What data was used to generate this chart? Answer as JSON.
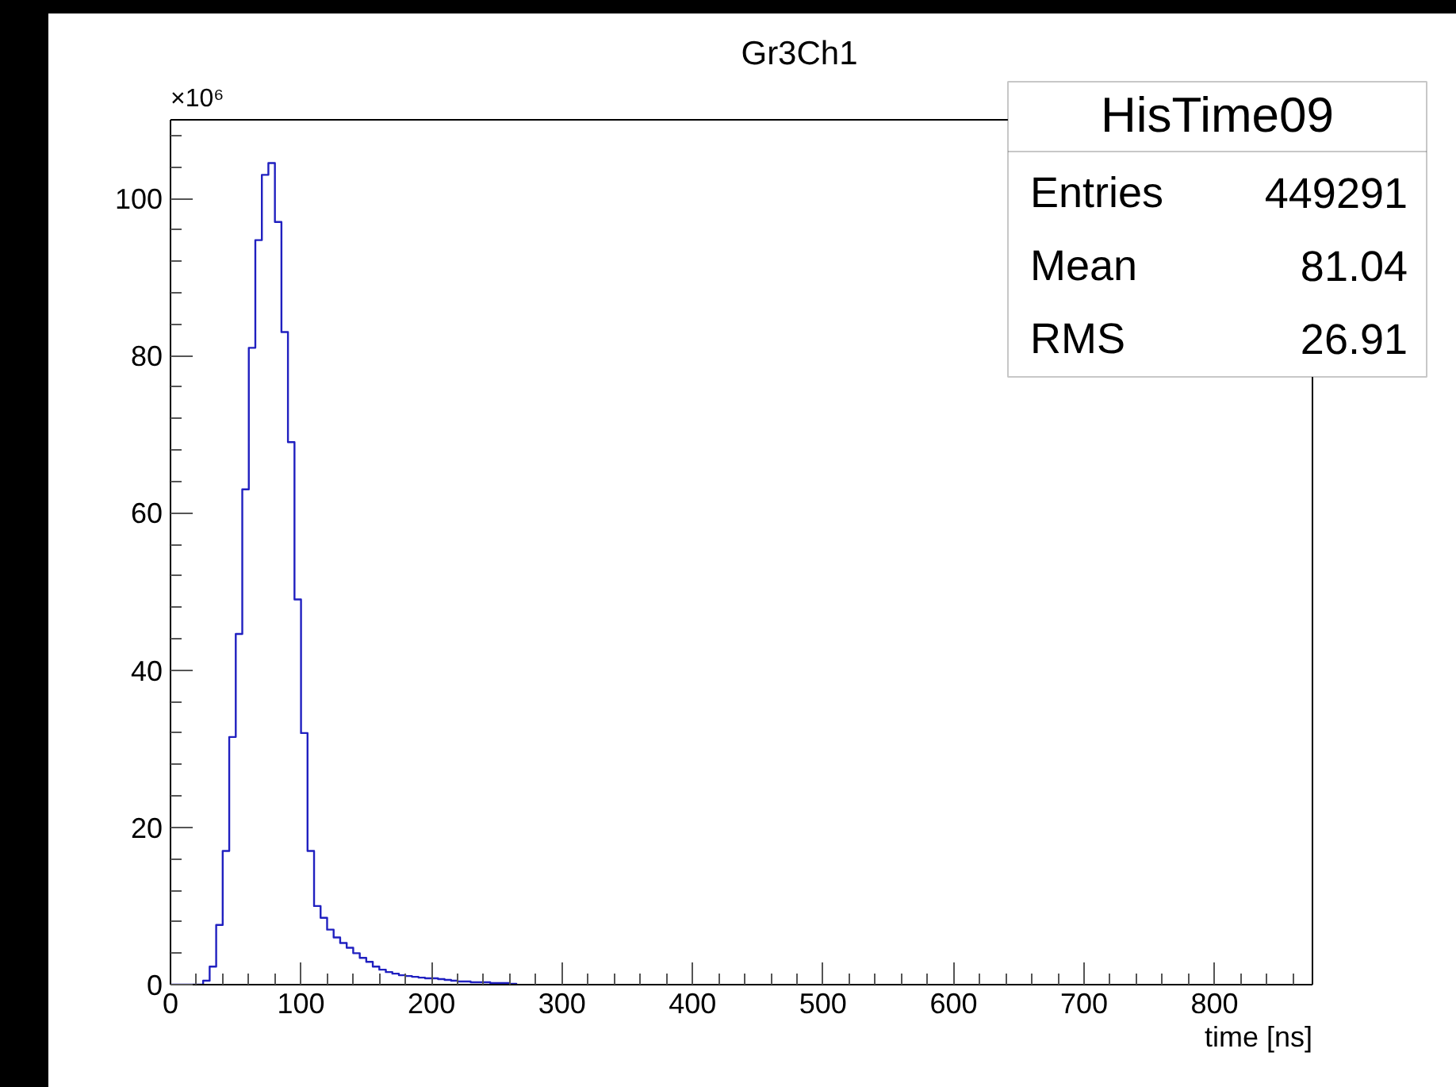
{
  "chart_data": {
    "type": "histogram",
    "title": "Gr3Ch1",
    "xlabel": "time [ns]",
    "bins": [
      0,
      5,
      10,
      15,
      20,
      25,
      30,
      35,
      40,
      45,
      50,
      55,
      60,
      65,
      70,
      75,
      80,
      85,
      90,
      95,
      100,
      105,
      110,
      115,
      120,
      125,
      130,
      135,
      140,
      145,
      150,
      155,
      160,
      165,
      170,
      175,
      180,
      185,
      190,
      195,
      200,
      205,
      210,
      215,
      220,
      225,
      230,
      235,
      240,
      245,
      250,
      255,
      260,
      265
    ],
    "values": [
      0,
      0,
      0,
      0,
      0,
      0.5,
      2.3,
      7.6,
      17,
      31.5,
      44.6,
      63,
      81,
      94.7,
      103,
      104.5,
      97,
      83,
      69,
      49,
      32,
      17,
      10,
      8.5,
      7,
      6,
      5.3,
      4.7,
      4,
      3.4,
      2.9,
      2.3,
      1.9,
      1.6,
      1.4,
      1.2,
      1.1,
      1.0,
      0.9,
      0.8,
      0.8,
      0.7,
      0.6,
      0.5,
      0.4,
      0.4,
      0.3,
      0.3,
      0.3,
      0.2,
      0.2,
      0.2,
      0.1
    ],
    "color": "#2020c0",
    "xlim": [
      0,
      875
    ],
    "ylim": [
      0,
      110
    ],
    "xticks": [
      0,
      100,
      200,
      300,
      400,
      500,
      600,
      700,
      800
    ],
    "yticks": [
      0,
      20,
      40,
      60,
      80,
      100
    ],
    "annotations": [
      "×10⁶",
      "HisTime09",
      "Entries 449291",
      "Mean 81.04",
      "RMS 26.91"
    ]
  }
}
